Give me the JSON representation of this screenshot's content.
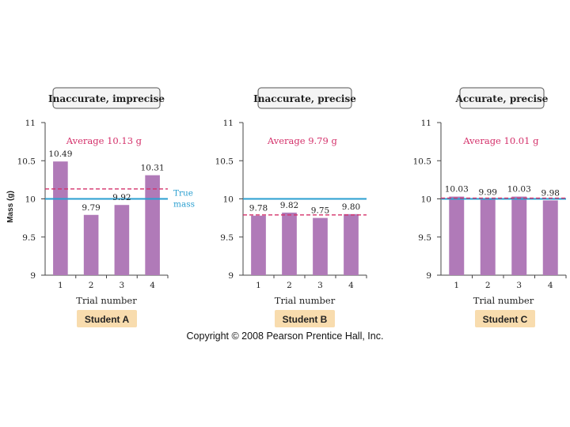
{
  "colors": {
    "bar": "#b07ab8",
    "true_line": "#2a9fd0",
    "average": "#d4306a",
    "title_box_fill": "#f4f4f4",
    "student_box_fill": "#f8dcae",
    "axis": "#444444"
  },
  "chart_data": [
    {
      "type": "bar",
      "title": "Inaccurate, imprecise",
      "student": "Student A",
      "categories": [
        "1",
        "2",
        "3",
        "4"
      ],
      "values": [
        10.49,
        9.79,
        9.92,
        10.31
      ],
      "value_labels": [
        "10.49",
        "9.79",
        "9.92",
        "10.31"
      ],
      "average": 10.13,
      "average_label": "Average 10.13 g",
      "true_value": 10,
      "true_label": [
        "True",
        "mass"
      ],
      "xlabel": "Trial number",
      "ylabel": "Mass (g)",
      "ylim": [
        9,
        11
      ],
      "yticks": [
        "9",
        "9.5",
        "10",
        "10.5",
        "11"
      ]
    },
    {
      "type": "bar",
      "title": "Inaccurate, precise",
      "student": "Student B",
      "categories": [
        "1",
        "2",
        "3",
        "4"
      ],
      "values": [
        9.78,
        9.82,
        9.75,
        9.8
      ],
      "value_labels": [
        "9.78",
        "9.82",
        "9.75",
        "9.80"
      ],
      "average": 9.79,
      "average_label": "Average 9.79 g",
      "true_value": 10,
      "xlabel": "Trial number",
      "ylabel": "",
      "ylim": [
        9,
        11
      ],
      "yticks": [
        "9",
        "9.5",
        "10",
        "10.5",
        "11"
      ]
    },
    {
      "type": "bar",
      "title": "Accurate, precise",
      "student": "Student C",
      "categories": [
        "1",
        "2",
        "3",
        "4"
      ],
      "values": [
        10.03,
        9.99,
        10.03,
        9.98
      ],
      "value_labels": [
        "10.03",
        "9.99",
        "10.03",
        "9.98"
      ],
      "average": 10.01,
      "average_label": "Average 10.01 g",
      "true_value": 10,
      "xlabel": "Trial number",
      "ylabel": "",
      "ylim": [
        9,
        11
      ],
      "yticks": [
        "9",
        "9.5",
        "10",
        "10.5",
        "11"
      ]
    }
  ],
  "copyright": "Copyright © 2008 Pearson Prentice Hall, Inc."
}
